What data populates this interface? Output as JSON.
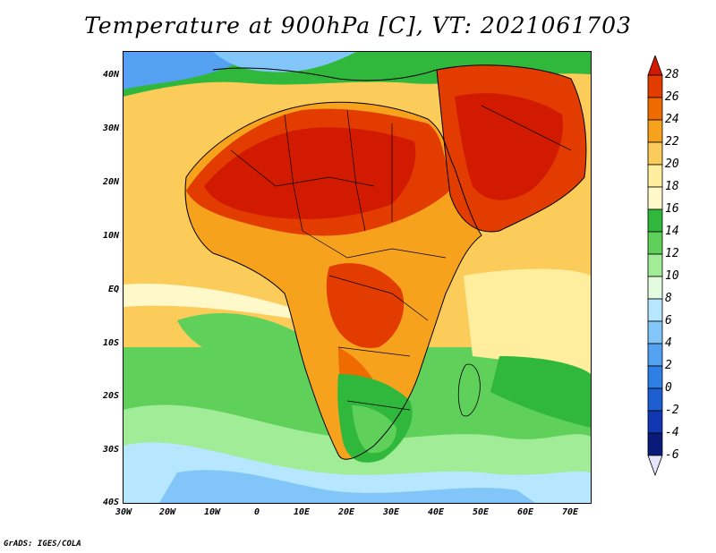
{
  "title": "Temperature at 900hPa [C], VT: 2021061703",
  "footer": "GrADS: IGES/COLA",
  "map": {
    "region": "Africa and Middle East",
    "variable": "Temperature at 900hPa",
    "units": "C",
    "lat_range": [
      -40,
      45
    ],
    "lon_range": [
      -30,
      75
    ],
    "lat_ticks": [
      "40N",
      "30N",
      "20N",
      "10N",
      "EQ",
      "10S",
      "20S",
      "30S",
      "40S"
    ],
    "lon_ticks": [
      "30W",
      "20W",
      "10W",
      "0",
      "10E",
      "20E",
      "30E",
      "40E",
      "50E",
      "60E",
      "70E"
    ]
  },
  "colorbar": {
    "levels": [
      "28",
      "26",
      "24",
      "22",
      "20",
      "18",
      "16",
      "14",
      "12",
      "10",
      "8",
      "6",
      "4",
      "2",
      "0",
      "-2",
      "-4",
      "-6"
    ],
    "colors": [
      "#d21a00",
      "#e23c00",
      "#ef6b00",
      "#f6a21d",
      "#fbcc5a",
      "#ffee9d",
      "#fff8c8",
      "#2fb83c",
      "#5fd15b",
      "#a1ec96",
      "#e3fbe0",
      "#b6e7ff",
      "#82c6f9",
      "#54a0f1",
      "#2e7fe6",
      "#1d5ed3",
      "#1138b2",
      "#0a1a78",
      "#e6e6fa"
    ]
  }
}
